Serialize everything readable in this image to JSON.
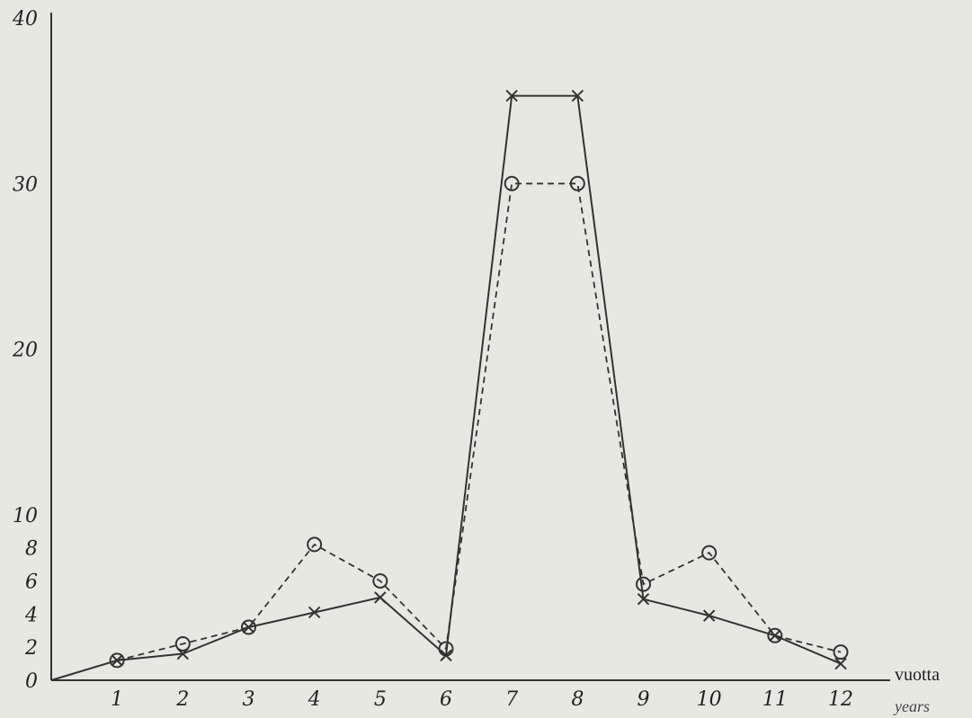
{
  "chart_data": {
    "type": "line",
    "x": [
      0,
      1,
      2,
      3,
      4,
      5,
      6,
      7,
      8,
      9,
      10,
      11,
      12
    ],
    "x_ticks": [
      "1",
      "2",
      "3",
      "4",
      "5",
      "6",
      "7",
      "8",
      "9",
      "10",
      "11",
      "12"
    ],
    "y_ticks": [
      "0",
      "2",
      "4",
      "6",
      "8",
      "10",
      "20",
      "30",
      "40"
    ],
    "xlabel": "vuotta",
    "xlabel_secondary": "years",
    "ylabel": "",
    "title": "",
    "xlim": [
      0,
      12.4
    ],
    "ylim": [
      0,
      40
    ],
    "grid": false,
    "legend": "none",
    "series": [
      {
        "style": "solid",
        "marker": "x",
        "color": "#333333",
        "values": [
          0,
          1.2,
          1.6,
          3.2,
          4.1,
          5.0,
          1.5,
          35.3,
          35.3,
          4.9,
          3.9,
          2.7,
          1.0
        ]
      },
      {
        "style": "dashed",
        "marker": "o",
        "color": "#333333",
        "values": [
          null,
          1.2,
          2.2,
          3.2,
          8.2,
          6.0,
          1.9,
          30.0,
          30.0,
          5.8,
          7.7,
          2.7,
          1.7
        ]
      }
    ]
  }
}
